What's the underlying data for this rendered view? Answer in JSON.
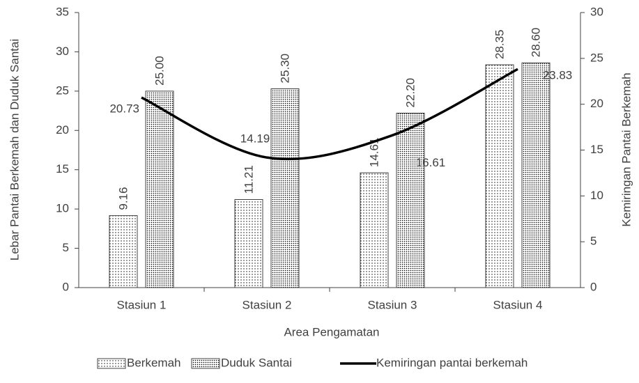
{
  "chart_data": {
    "type": "bar_line",
    "categories": [
      "Stasiun 1",
      "Stasiun 2",
      "Stasiun 3",
      "Stasiun 4"
    ],
    "x_label": "Area Pengamatan",
    "y_label": "Lebar Pantai Berkemah dan Duduk Santai",
    "y2_label": "Kemiringan Pantai Berkemah",
    "ylim": [
      0,
      35
    ],
    "yticks": [
      0,
      5,
      10,
      15,
      20,
      25,
      30,
      35
    ],
    "y2lim": [
      0,
      30
    ],
    "y2ticks": [
      0,
      5,
      10,
      15,
      20,
      25,
      30
    ],
    "legend": "bottom",
    "series": [
      {
        "name": "Berkemah",
        "type": "bar",
        "color": "#000000",
        "values": [
          9.16,
          11.21,
          14.61,
          28.35
        ],
        "value_labels": [
          "9.16",
          "11.21",
          "14.61",
          "28.35"
        ]
      },
      {
        "name": "Duduk Santai",
        "type": "bar",
        "color": "#000000",
        "values": [
          25,
          25.3,
          22.2,
          28.6
        ],
        "value_labels": [
          "25.00",
          "25.30",
          "22.20",
          "28.60"
        ]
      },
      {
        "name": "Kemiringan pantai berkemah",
        "type": "line",
        "axis": "y2",
        "color": "#000000",
        "values": [
          20.73,
          14.19,
          16.61,
          23.83
        ]
      }
    ]
  }
}
